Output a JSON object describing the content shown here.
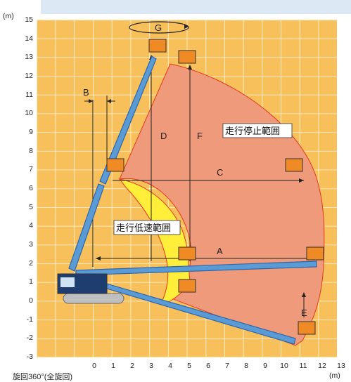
{
  "axes": {
    "y_unit": "(m)",
    "x_unit": "(m)",
    "x_ticks": [
      "0",
      "1",
      "2",
      "3",
      "4",
      "5",
      "6",
      "7",
      "8",
      "9",
      "10",
      "11",
      "12",
      "13"
    ],
    "y_ticks": [
      "15",
      "14",
      "13",
      "12",
      "11",
      "10",
      "9",
      "8",
      "7",
      "6",
      "5",
      "4",
      "3",
      "2",
      "1",
      "0",
      "-1",
      "-2",
      "-3"
    ]
  },
  "dimension_labels": {
    "A": "A",
    "B": "B",
    "C": "C",
    "D": "D",
    "E": "E",
    "F": "F",
    "G": "G"
  },
  "zones": {
    "stop_zone_label": "走行停止範囲",
    "slow_zone_label": "走行低速範囲"
  },
  "caption": "旋回360°(全旋回)",
  "colors": {
    "grid_background": "#f7c05a",
    "grid_lines": "#fff6df",
    "stop_zone": "#ef9a7b",
    "slow_zone": "#ffee3a",
    "boom": "#5b9bd5",
    "header_band": "#dce9f5"
  }
}
